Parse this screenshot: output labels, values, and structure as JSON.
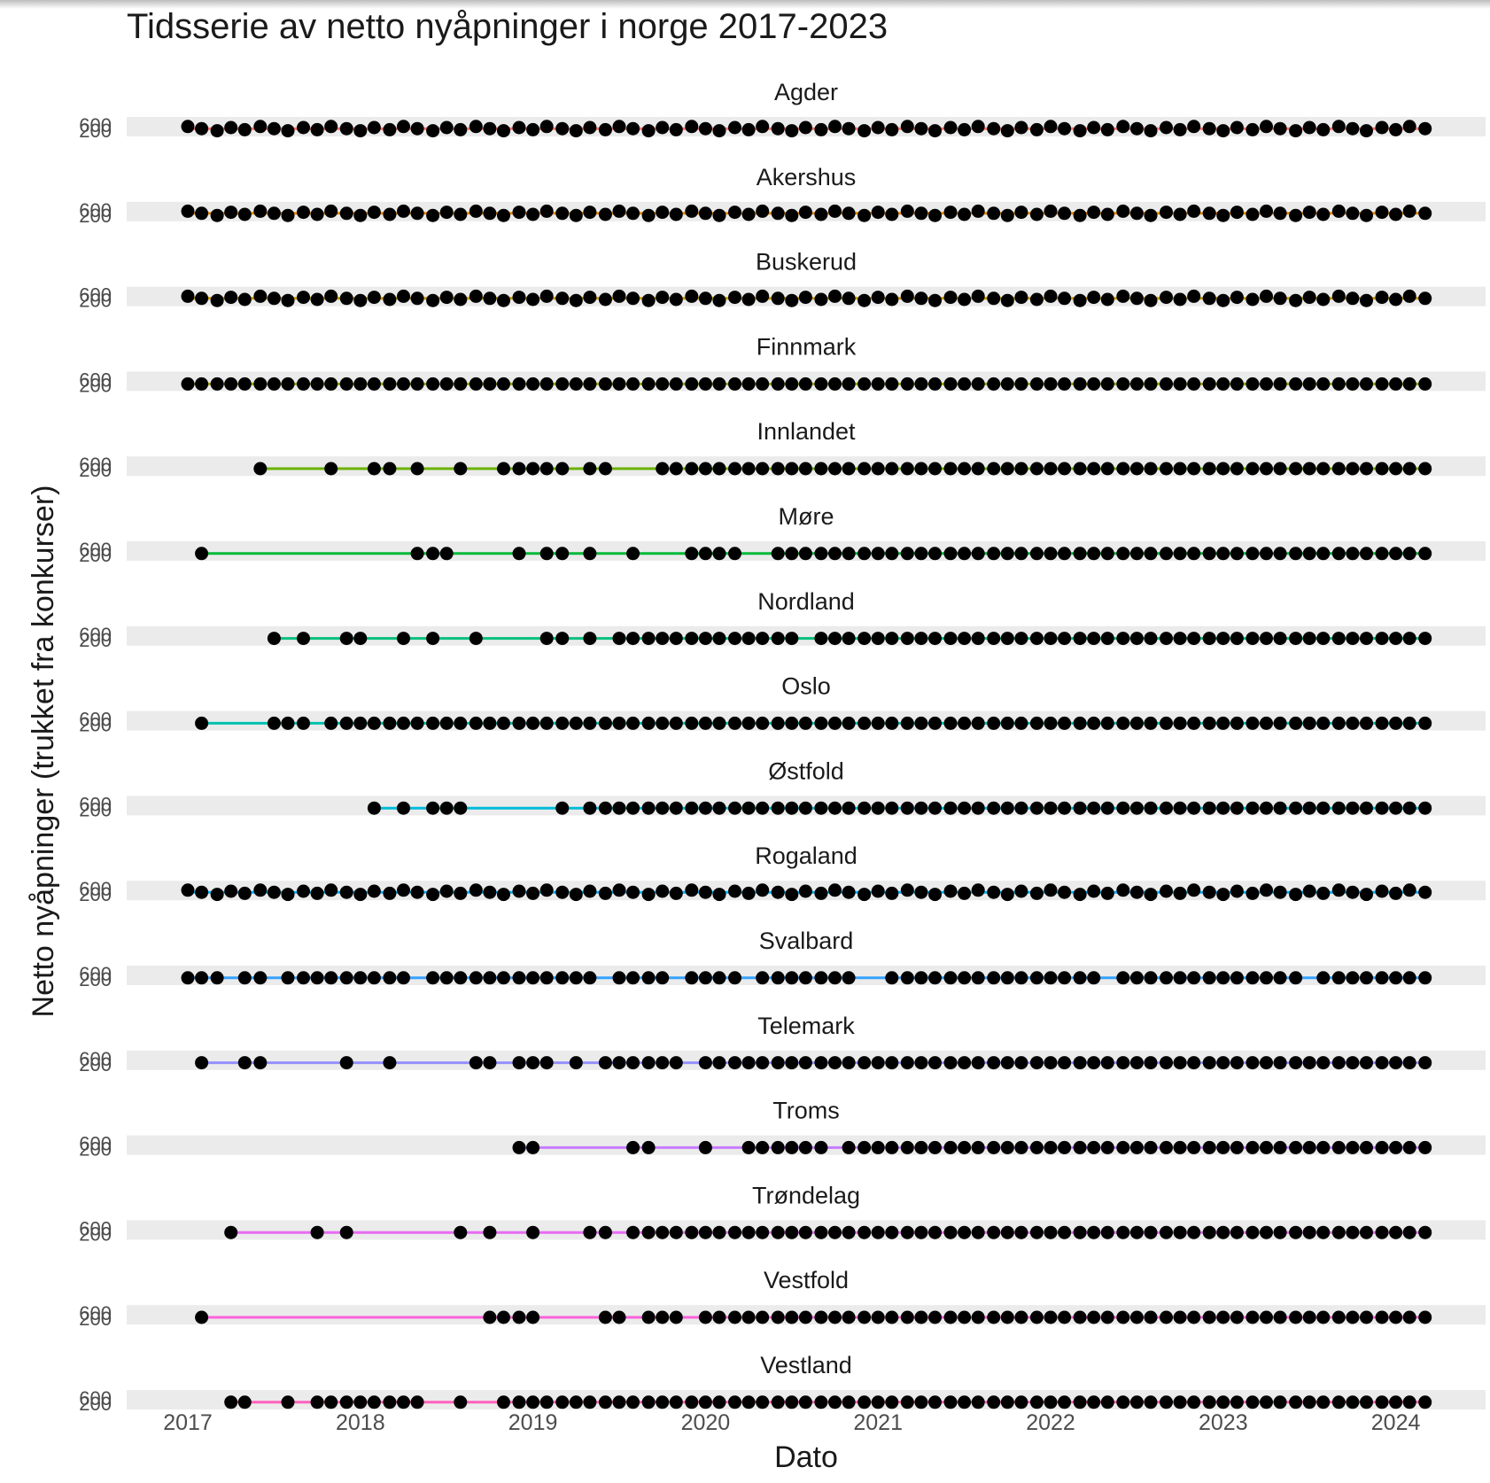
{
  "chart_data": {
    "type": "line",
    "title": "Tidsserie av netto nyåpninger i norge 2017-2023",
    "xlabel": "Dato",
    "ylabel": "Netto nyåpninger (trukket fra konkurser)",
    "x_ticks": [
      "2017",
      "2018",
      "2019",
      "2020",
      "2021",
      "2022",
      "2023",
      "2024"
    ],
    "xlim": [
      2016.65,
      2024.45
    ],
    "y_ticks": [
      "200",
      "600"
    ],
    "ylim": [
      150,
      650
    ],
    "facets": [
      {
        "name": "Agder",
        "color": "#F8766D",
        "start": 2017.0,
        "value": 240,
        "missing": []
      },
      {
        "name": "Akershus",
        "color": "#E58700",
        "start": 2017.0,
        "value": 250,
        "missing": []
      },
      {
        "name": "Buskerud",
        "color": "#C99800",
        "start": 2017.0,
        "value": 240,
        "missing": []
      },
      {
        "name": "Finnmark",
        "color": "#A3A500",
        "start": 2017.0,
        "value": 200,
        "missing": []
      },
      {
        "name": "Innlandet",
        "color": "#6BB100",
        "start": 2017.42,
        "value": 210,
        "missing": [
          2017.5,
          2017.58,
          2017.67,
          2017.75,
          2017.92,
          2018.0,
          2018.25,
          2018.42,
          2018.5,
          2018.67,
          2018.75,
          2019.25,
          2019.5,
          2019.58,
          2019.67
        ]
      },
      {
        "name": "Møre",
        "color": "#00BA38",
        "start": 2017.08,
        "value": 210,
        "missing": [
          2017.17,
          2017.25,
          2017.33,
          2017.42,
          2017.5,
          2017.58,
          2017.67,
          2017.75,
          2017.83,
          2017.92,
          2018.0,
          2018.08,
          2018.17,
          2018.25,
          2018.58,
          2018.67,
          2018.75,
          2018.83,
          2019.0,
          2019.25,
          2019.42,
          2019.5,
          2019.67,
          2019.75,
          2019.83,
          2020.25,
          2020.33
        ]
      },
      {
        "name": "Nordland",
        "color": "#00BF7D",
        "start": 2017.5,
        "value": 210,
        "missing": [
          2017.58,
          2017.75,
          2017.83,
          2018.08,
          2018.17,
          2018.33,
          2018.5,
          2018.58,
          2018.75,
          2018.83,
          2018.92,
          2019.0,
          2019.25,
          2019.42,
          2020.58
        ]
      },
      {
        "name": "Oslo",
        "color": "#00C0AF",
        "start": 2017.08,
        "value": 210,
        "missing": [
          2017.17,
          2017.25,
          2017.33,
          2017.42,
          2017.75
        ]
      },
      {
        "name": "Østfold",
        "color": "#00BCD8",
        "start": 2018.08,
        "value": 210,
        "missing": [
          2018.17,
          2018.33,
          2018.67,
          2018.75,
          2018.83,
          2018.92,
          2019.0,
          2019.08,
          2019.25
        ]
      },
      {
        "name": "Rogaland",
        "color": "#00B0F6",
        "start": 2017.0,
        "value": 250,
        "missing": []
      },
      {
        "name": "Svalbard",
        "color": "#35A2FF",
        "start": 2017.0,
        "value": 210,
        "missing": [
          2017.25,
          2017.5,
          2018.33,
          2019.42,
          2019.83,
          2020.25,
          2020.92,
          2021.0,
          2022.33,
          2023.5
        ]
      },
      {
        "name": "Telemark",
        "color": "#9590FF",
        "start": 2017.08,
        "value": 210,
        "missing": [
          2017.17,
          2017.25,
          2017.5,
          2017.58,
          2017.67,
          2017.75,
          2017.83,
          2018.0,
          2018.08,
          2018.25,
          2018.33,
          2018.42,
          2018.5,
          2018.58,
          2018.83,
          2019.17,
          2019.33,
          2019.92
        ]
      },
      {
        "name": "Troms",
        "color": "#C77CFF",
        "start": 2018.92,
        "value": 210,
        "missing": [
          2019.08,
          2019.17,
          2019.25,
          2019.33,
          2019.42,
          2019.5,
          2019.75,
          2019.83,
          2019.92,
          2020.08,
          2020.17,
          2020.75
        ]
      },
      {
        "name": "Trøndelag",
        "color": "#E76BF3",
        "start": 2017.25,
        "value": 210,
        "missing": [
          2017.33,
          2017.42,
          2017.5,
          2017.58,
          2017.67,
          2017.83,
          2018.0,
          2018.08,
          2018.17,
          2018.25,
          2018.33,
          2018.42,
          2018.5,
          2018.67,
          2018.83,
          2018.92,
          2019.08,
          2019.17,
          2019.25,
          2019.5
        ]
      },
      {
        "name": "Vestfold",
        "color": "#FA62DB",
        "start": 2017.08,
        "value": 210,
        "missing": [
          2017.17,
          2017.25,
          2017.33,
          2017.42,
          2017.5,
          2017.58,
          2017.67,
          2017.75,
          2017.83,
          2017.92,
          2018.0,
          2018.08,
          2018.17,
          2018.25,
          2018.33,
          2018.42,
          2018.5,
          2018.58,
          2018.67,
          2019.08,
          2019.17,
          2019.25,
          2019.33,
          2019.58,
          2019.92
        ]
      },
      {
        "name": "Vestland",
        "color": "#FF62BC",
        "start": 2017.25,
        "value": 210,
        "missing": [
          2017.42,
          2017.5,
          2017.67,
          2018.42,
          2018.5,
          2018.67,
          2018.75
        ]
      }
    ]
  }
}
